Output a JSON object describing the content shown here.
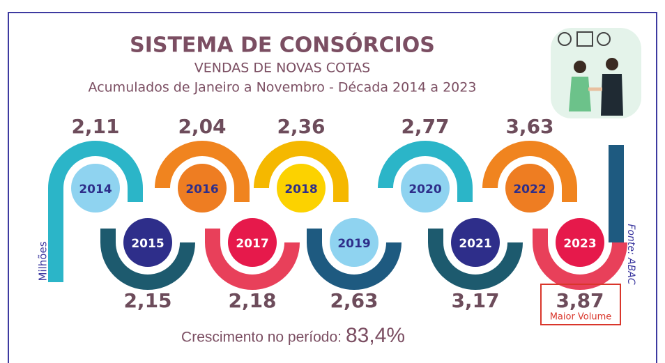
{
  "header": {
    "title": "SISTEMA DE CONSÓRCIOS",
    "subtitle": "VENDAS DE NOVAS COTAS",
    "period": "Acumulados de Janeiro a Novembro - Década 2014 a 2023"
  },
  "unit": "Milhões",
  "source": "Fonte: ABAC",
  "items": [
    {
      "year": "2014",
      "value": "2,11"
    },
    {
      "year": "2015",
      "value": "2,15"
    },
    {
      "year": "2016",
      "value": "2,04"
    },
    {
      "year": "2017",
      "value": "2,18"
    },
    {
      "year": "2018",
      "value": "2,36"
    },
    {
      "year": "2019",
      "value": "2,63"
    },
    {
      "year": "2020",
      "value": "2,77"
    },
    {
      "year": "2021",
      "value": "3,17"
    },
    {
      "year": "2022",
      "value": "3,63"
    },
    {
      "year": "2023",
      "value": "3,87"
    }
  ],
  "highlight": "Maior Volume",
  "growth": {
    "label": "Crescimento no período:",
    "value": "83,4%"
  }
}
